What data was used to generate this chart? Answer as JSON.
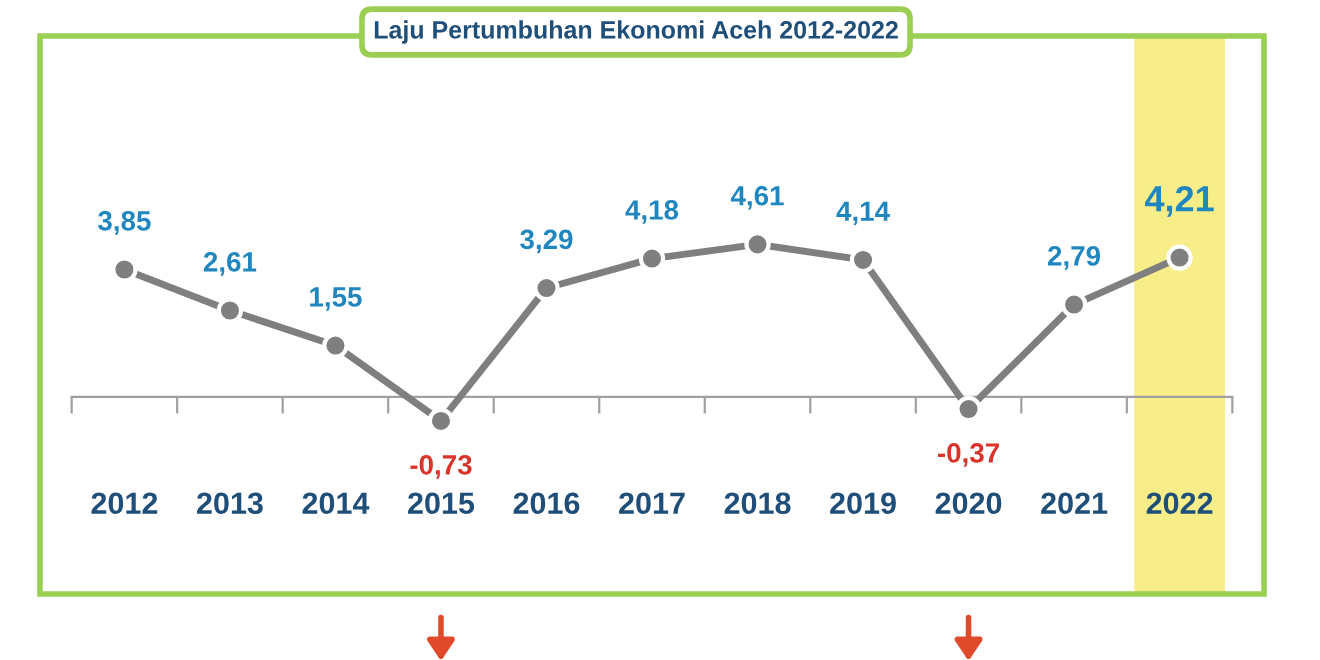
{
  "chart_data": {
    "type": "line",
    "title": "Laju Pertumbuhan Ekonomi Aceh 2012-2022",
    "categories": [
      "2012",
      "2013",
      "2014",
      "2015",
      "2016",
      "2017",
      "2018",
      "2019",
      "2020",
      "2021",
      "2022"
    ],
    "series": [
      {
        "color": "#7f7f7f",
        "values": [
          3.85,
          2.61,
          1.55,
          -0.73,
          3.29,
          4.18,
          4.61,
          4.14,
          -0.37,
          2.79,
          4.21
        ],
        "value_labels": [
          "3,85",
          "2,61",
          "1,55",
          "-0,73",
          "3,29",
          "4,18",
          "4,61",
          "4,14",
          "-0,37",
          "2,79",
          "4,21"
        ]
      }
    ],
    "bands": [
      {
        "axis": "x",
        "from": "2022",
        "to": "2022",
        "color": "#f7ee8a"
      }
    ],
    "marker": "circle",
    "line_style": "solid",
    "grid": false,
    "legend": false
  }
}
